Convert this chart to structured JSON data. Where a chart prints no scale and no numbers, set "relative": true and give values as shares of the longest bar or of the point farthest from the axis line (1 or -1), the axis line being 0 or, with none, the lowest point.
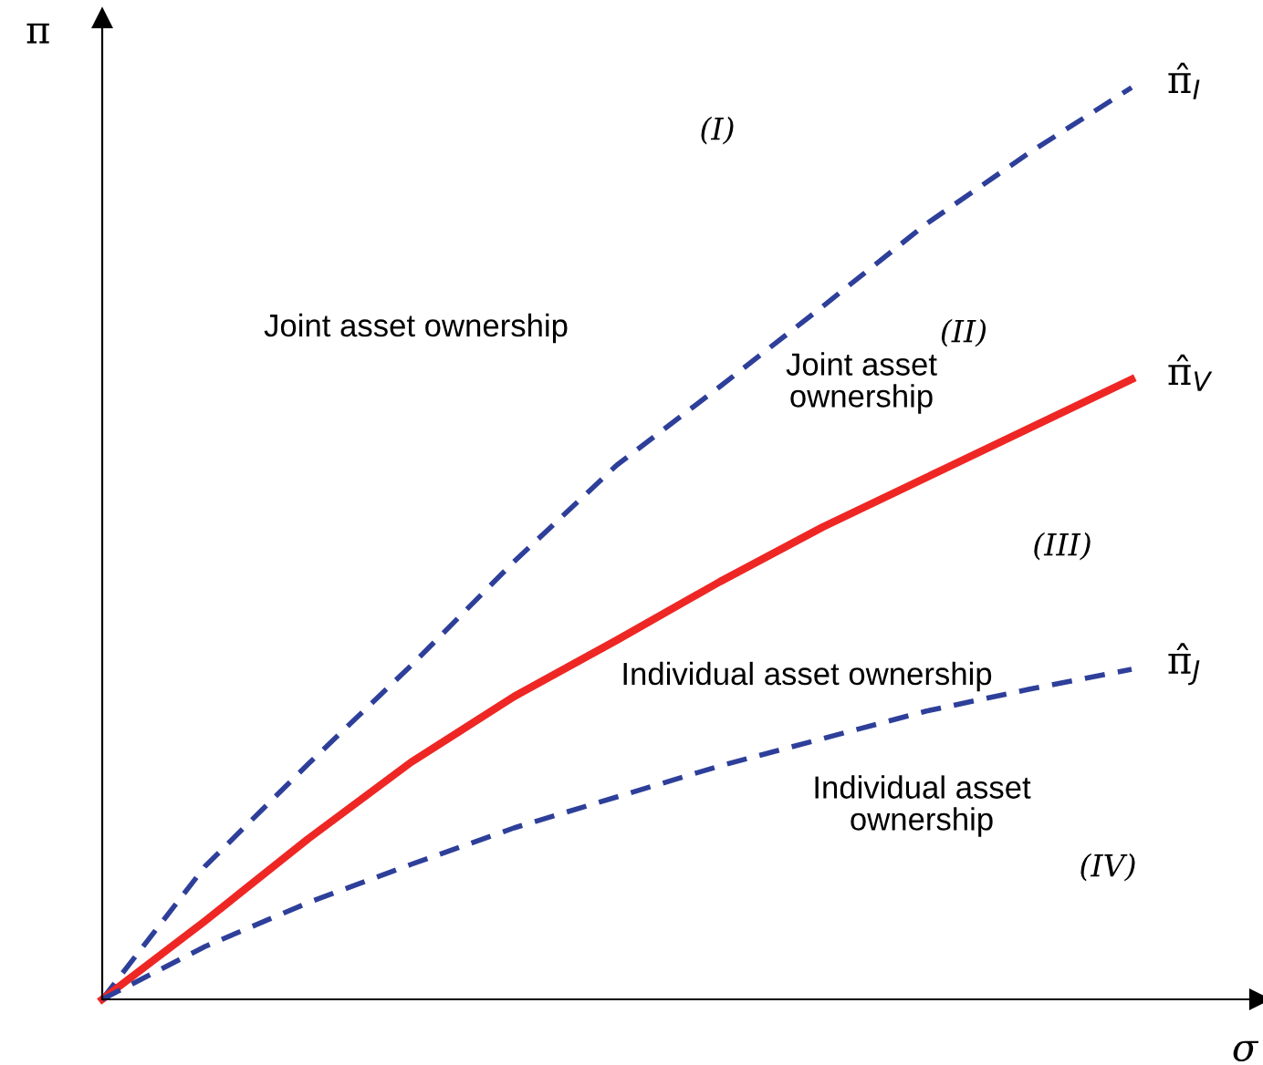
{
  "chart_data": {
    "type": "line",
    "relative": true,
    "xlabel": "σ",
    "ylabel": "π",
    "categories": [
      null,
      null,
      null,
      null,
      null,
      null,
      null,
      null,
      null,
      null,
      null
    ],
    "series": [
      {
        "name": "π̂$_{I}$",
        "color": "#2e3f9a",
        "line_style": "dashed",
        "values": [
          0,
          0.146,
          0.258,
          0.366,
          0.48,
          0.586,
          0.672,
          0.76,
          0.85,
          0.928,
          1.0
        ]
      },
      {
        "name": "π̂$_{V}$",
        "color": "#ee2724",
        "line_style": "solid",
        "values": [
          0,
          0.086,
          0.176,
          0.26,
          0.332,
          0.394,
          0.458,
          0.518,
          0.572,
          0.626,
          0.68
        ]
      },
      {
        "name": "π̂$_{J}$",
        "color": "#2e3f9a",
        "line_style": "dashed",
        "values": [
          0,
          0.058,
          0.106,
          0.148,
          0.188,
          0.222,
          0.256,
          0.286,
          0.316,
          0.34,
          0.362
        ]
      }
    ],
    "annotations": [
      "(I)",
      "Joint asset ownership",
      "(II)",
      "Joint asset\nownership",
      "(III)",
      "Individual asset ownership",
      "Individual asset\nownership",
      "(IV)"
    ],
    "marker": "none"
  }
}
